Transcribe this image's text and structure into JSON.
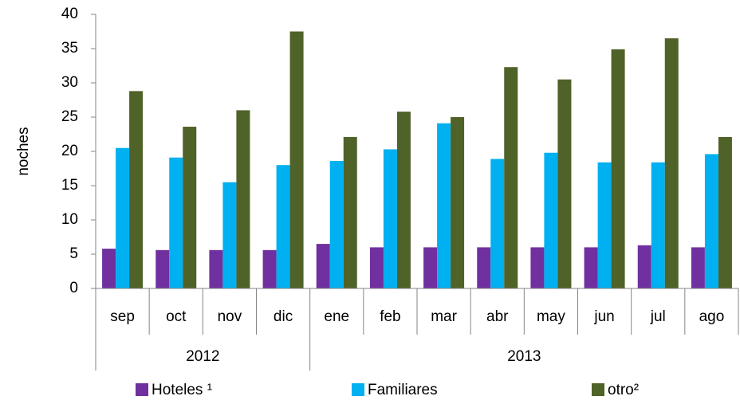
{
  "chart_data": {
    "type": "bar",
    "y_label": "noches",
    "categories": [
      "sep",
      "oct",
      "nov",
      "dic",
      "ene",
      "feb",
      "mar",
      "abr",
      "may",
      "jun",
      "jul",
      "ago"
    ],
    "x_groups": [
      {
        "label": "2012",
        "count": 4
      },
      {
        "label": "2013",
        "count": 8
      }
    ],
    "series": [
      {
        "name": "Hoteles ¹",
        "color": "#7030a0",
        "values": [
          5.8,
          5.6,
          5.6,
          5.6,
          6.5,
          6.0,
          6.0,
          6.0,
          6.0,
          6.0,
          6.3,
          6.0
        ]
      },
      {
        "name": "Familiares",
        "color": "#00b0f0",
        "values": [
          20.5,
          19.1,
          15.5,
          18.0,
          18.6,
          20.3,
          24.1,
          18.9,
          19.8,
          18.4,
          18.4,
          19.6
        ]
      },
      {
        "name": "otro²",
        "color": "#4f6228",
        "values": [
          28.8,
          23.6,
          26.0,
          37.5,
          22.1,
          25.8,
          25.0,
          32.3,
          30.5,
          34.9,
          36.5,
          22.1
        ]
      }
    ],
    "ylim": [
      0,
      40
    ],
    "yticks": [
      0,
      5,
      10,
      15,
      20,
      25,
      30,
      35,
      40
    ],
    "grid": false,
    "legend": "bottom"
  }
}
